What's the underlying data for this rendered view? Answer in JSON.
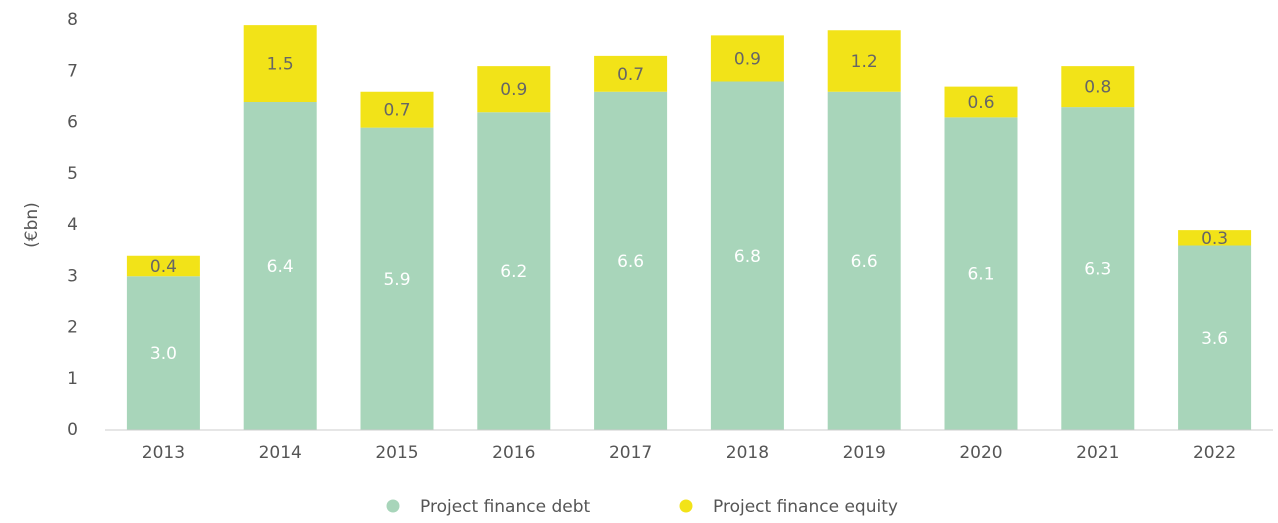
{
  "chart_data": {
    "type": "stacked_bar",
    "y_label": "(€bn)",
    "categories": [
      "2013",
      "2014",
      "2015",
      "2016",
      "2017",
      "2018",
      "2019",
      "2020",
      "2021",
      "2022"
    ],
    "series": [
      {
        "name": "Project finance debt",
        "color": "#a8d5ba",
        "values": [
          3.0,
          6.4,
          5.9,
          6.2,
          6.6,
          6.8,
          6.6,
          6.1,
          6.3,
          3.6
        ],
        "value_labels": [
          "3.0",
          "6.4",
          "5.9",
          "6.2",
          "6.6",
          "6.8",
          "6.6",
          "6.1",
          "6.3",
          "3.6"
        ]
      },
      {
        "name": "Project finance equity",
        "color": "#f2e318",
        "values": [
          0.4,
          1.5,
          0.7,
          0.9,
          0.7,
          0.9,
          1.2,
          0.6,
          0.8,
          0.3
        ],
        "value_labels": [
          "0.4",
          "1.5",
          "0.7",
          "0.9",
          "0.7",
          "0.9",
          "1.2",
          "0.6",
          "0.8",
          "0.3"
        ]
      }
    ],
    "ylim": [
      0,
      8
    ],
    "yticks": [
      0,
      1,
      2,
      3,
      4,
      5,
      6,
      7,
      8
    ],
    "grid": false,
    "legend": "bottom"
  }
}
